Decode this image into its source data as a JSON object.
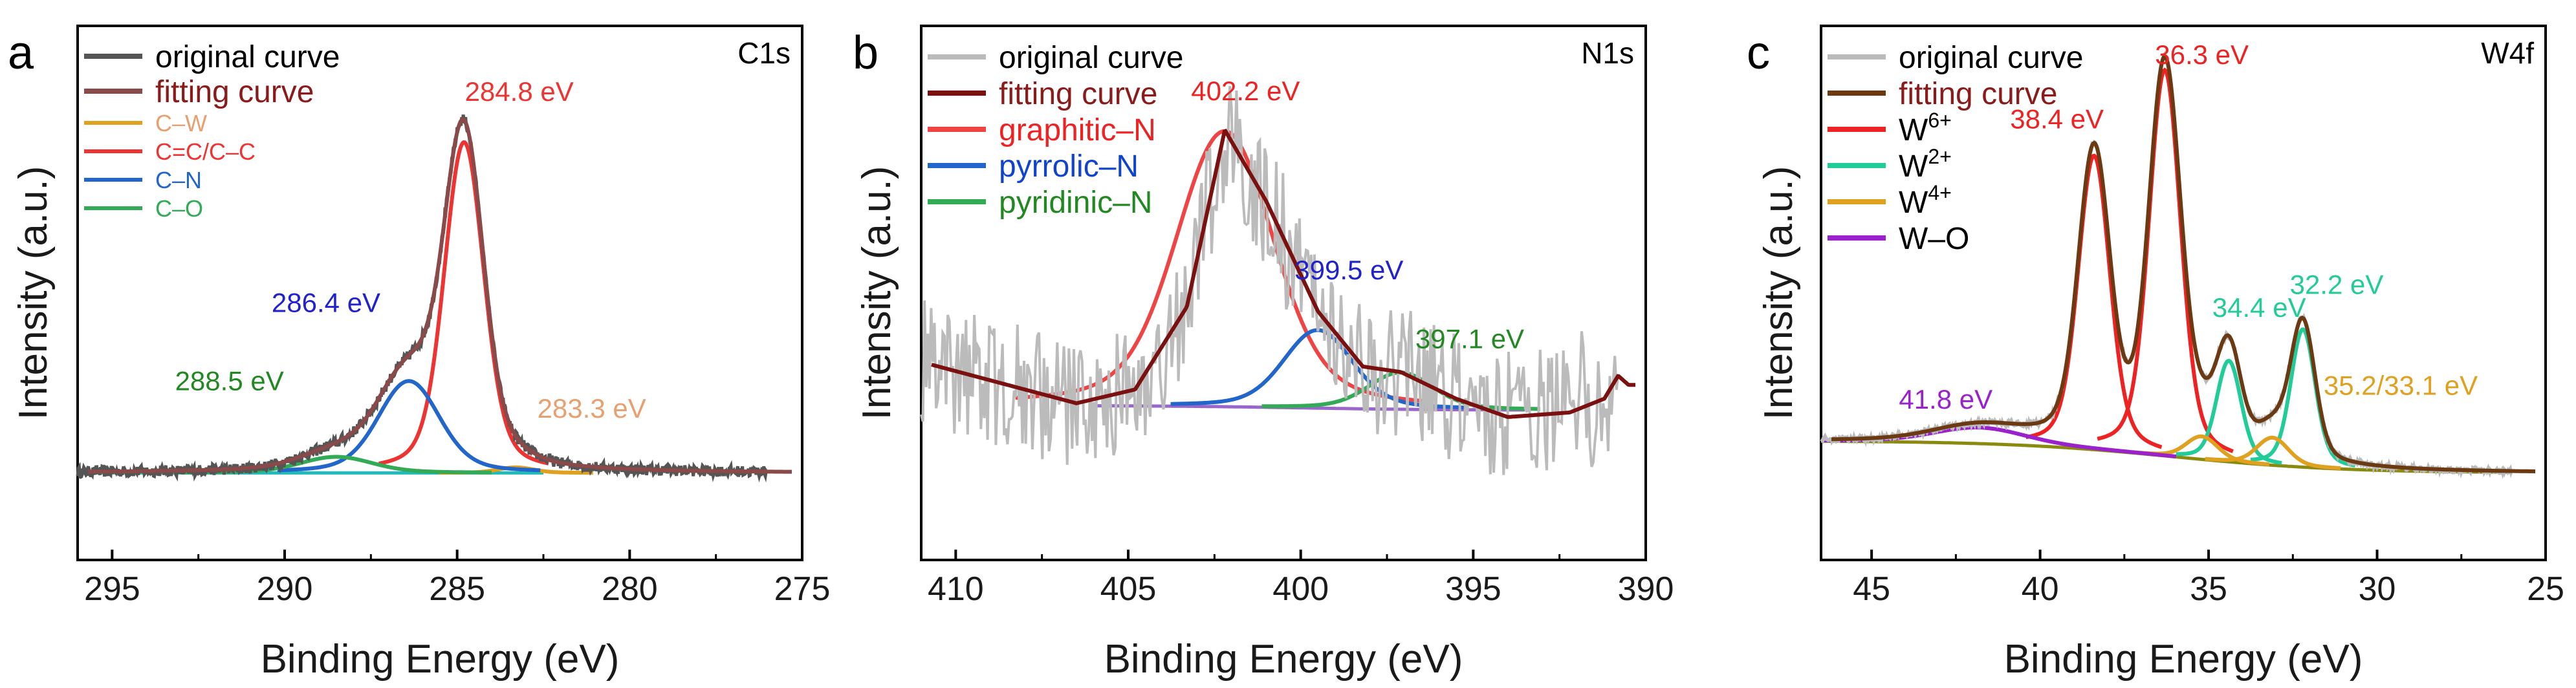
{
  "figure_labels": [
    "a",
    "b",
    "c"
  ],
  "chart_data": [
    {
      "type": "line",
      "panel_letter": "a",
      "core_label": "C1s",
      "xlabel": "Binding Energy (eV)",
      "ylabel": "Intensity (a.u.)",
      "xlim": [
        296,
        275
      ],
      "ylim": [
        0,
        1.0
      ],
      "x_ticks": [
        295,
        290,
        285,
        280,
        275
      ],
      "x_tick_labels": [
        "295",
        "290",
        "285",
        "280",
        "275"
      ],
      "baseline_decay": 6.0,
      "series": [
        {
          "name": "original curve",
          "role": "data",
          "color": "#555555",
          "noise": 0.012
        },
        {
          "name": "fitting curve",
          "role": "fit",
          "color": "#8a4a4a"
        },
        {
          "name": "C–W",
          "role": "peak",
          "color": "#e0a020",
          "center": 283.3,
          "height": 0.012,
          "width": 0.5
        },
        {
          "name": "C=C/C–C",
          "role": "peak",
          "color": "#ee3333",
          "center": 284.8,
          "height": 0.72,
          "width": 0.55
        },
        {
          "name": "C–N",
          "role": "peak",
          "color": "#2266cc",
          "center": 286.4,
          "height": 0.2,
          "width": 0.85
        },
        {
          "name": "C–O",
          "role": "peak",
          "color": "#33aa55",
          "center": 288.5,
          "height": 0.035,
          "width": 1.0
        }
      ],
      "background": {
        "color": "#22bbbb",
        "xmin": 282.5,
        "xmax": 296,
        "base": 0.05,
        "step": 0.0,
        "step_center": 285,
        "step_width": 1.0
      },
      "legend": [
        {
          "label": "original curve",
          "color": "#555555",
          "text_color": "#000000",
          "size": "large"
        },
        {
          "label": "fitting curve",
          "color": "#8a4a4a",
          "text_color": "#8b1a1a",
          "size": "large"
        },
        {
          "label": "C–W",
          "color": "#e0a020",
          "text_color": "#e8a070",
          "size": "small"
        },
        {
          "label": "C=C/C–C",
          "color": "#ee3333",
          "text_color": "#ee3333",
          "size": "small"
        },
        {
          "label": "C–N",
          "color": "#2266cc",
          "text_color": "#2266cc",
          "size": "small"
        },
        {
          "label": "C–O",
          "color": "#33aa55",
          "text_color": "#33aa55",
          "size": "small"
        }
      ],
      "annotations": [
        {
          "text": "284.8 eV",
          "color": "#ee3333",
          "x": 283.2,
          "y": 0.86
        },
        {
          "text": "286.4 eV",
          "color": "#2222cc",
          "x": 288.8,
          "y": 0.4
        },
        {
          "text": "288.5 eV",
          "color": "#228822",
          "x": 291.6,
          "y": 0.23
        },
        {
          "text": "283.3 eV",
          "color": "#e8a070",
          "x": 281.1,
          "y": 0.17
        }
      ]
    },
    {
      "type": "line",
      "panel_letter": "b",
      "core_label": "N1s",
      "xlabel": "Binding Energy (eV)",
      "ylabel": "Intensity (a.u.)",
      "xlim": [
        411,
        390
      ],
      "ylim": [
        0,
        1.0
      ],
      "x_ticks": [
        410,
        405,
        400,
        395,
        390
      ],
      "x_tick_labels": [
        "410",
        "405",
        "400",
        "395",
        "390"
      ],
      "series": [
        {
          "name": "original curve",
          "role": "data",
          "color": "#bbbbbb",
          "noise": 0.09
        },
        {
          "name": "fitting curve",
          "role": "fit",
          "color": "#7a1010"
        },
        {
          "name": "graphitic–N",
          "role": "peak",
          "color": "#ee4444",
          "center": 402.2,
          "height": 0.6,
          "width": 1.35
        },
        {
          "name": "pyrrolic–N",
          "role": "peak",
          "color": "#2266cc",
          "center": 399.5,
          "height": 0.17,
          "width": 0.95
        },
        {
          "name": "pyridinic–N",
          "role": "peak",
          "color": "#33aa55",
          "center": 397.1,
          "height": 0.08,
          "width": 0.9
        }
      ],
      "background": {
        "color": "#9966cc",
        "xmin": 393.5,
        "xmax": 406,
        "base": 0.175,
        "step": 0.01,
        "step_center": 400,
        "step_width": 2.0
      },
      "fit_tail": [
        [
          411,
          0.28
        ],
        [
          409,
          0.24
        ],
        [
          406.5,
          0.19
        ],
        [
          404.8,
          0.22
        ],
        [
          403.3,
          0.4
        ],
        [
          402.2,
          0.785
        ],
        [
          401,
          0.63
        ],
        [
          399.5,
          0.39
        ],
        [
          398.2,
          0.27
        ],
        [
          397.1,
          0.258
        ],
        [
          395.5,
          0.2
        ],
        [
          394,
          0.16
        ],
        [
          392.2,
          0.17
        ],
        [
          391.2,
          0.2
        ],
        [
          390.8,
          0.25
        ],
        [
          390.5,
          0.23
        ]
      ],
      "legend": [
        {
          "label": "original curve",
          "color": "#bbbbbb",
          "text_color": "#000000",
          "size": "large"
        },
        {
          "label": "fitting curve",
          "color": "#7a1010",
          "text_color": "#8b1a1a",
          "size": "large"
        },
        {
          "label": "graphitic–N",
          "color": "#ee4444",
          "text_color": "#ee2222",
          "size": "large"
        },
        {
          "label": "pyrrolic–N",
          "color": "#2266cc",
          "text_color": "#1144cc",
          "size": "large"
        },
        {
          "label": "pyridinic–N",
          "color": "#33aa55",
          "text_color": "#228822",
          "size": "large"
        }
      ],
      "annotations": [
        {
          "text": "402.2 eV",
          "color": "#ee2222",
          "x": 401.6,
          "y": 0.85
        },
        {
          "text": "399.5 eV",
          "color": "#2222cc",
          "x": 398.6,
          "y": 0.46
        },
        {
          "text": "397.1 eV",
          "color": "#228822",
          "x": 395.1,
          "y": 0.31
        }
      ]
    },
    {
      "type": "line",
      "panel_letter": "c",
      "core_label": "W4f",
      "xlabel": "Binding Energy (eV)",
      "ylabel": "Intensity (a.u.)",
      "xlim": [
        46.5,
        25
      ],
      "ylim": [
        0,
        1.0
      ],
      "x_ticks": [
        45,
        40,
        35,
        30,
        25
      ],
      "x_tick_labels": [
        "45",
        "40",
        "35",
        "30",
        "25"
      ],
      "baseline_decay": 9.0,
      "series": [
        {
          "name": "original curve",
          "role": "data",
          "color": "#bbbbbb",
          "noise": 0.006
        },
        {
          "name": "fitting curve",
          "role": "fit",
          "color": "#6b3a12"
        },
        {
          "name": "W⁶⁺ 38.4",
          "role": "peak",
          "color": "#ee2222",
          "center": 38.4,
          "height": 0.64,
          "width": 0.45
        },
        {
          "name": "W⁶⁺ 36.3",
          "role": "peak",
          "color": "#ee2222",
          "center": 36.3,
          "height": 0.84,
          "width": 0.45
        },
        {
          "name": "W²⁺ 34.4",
          "role": "peak",
          "color": "#22cc99",
          "center": 34.4,
          "height": 0.22,
          "width": 0.35
        },
        {
          "name": "W²⁺ 32.2",
          "role": "peak",
          "color": "#22cc99",
          "center": 32.2,
          "height": 0.3,
          "width": 0.35
        },
        {
          "name": "W⁴⁺ 35.2",
          "role": "peak",
          "color": "#e0a020",
          "center": 35.2,
          "height": 0.05,
          "width": 0.45
        },
        {
          "name": "W⁴⁺ 33.1",
          "role": "peak",
          "color": "#e0a020",
          "center": 33.1,
          "height": 0.06,
          "width": 0.45
        },
        {
          "name": "W–O",
          "role": "peak",
          "color": "#9922cc",
          "center": 41.8,
          "height": 0.035,
          "width": 1.3
        }
      ],
      "background": {
        "color": "#8a8a10",
        "xmin": 26,
        "xmax": 46.5,
        "base": 0.05,
        "step": 0.07,
        "step_center": 36,
        "step_width": 2.5
      },
      "legend": [
        {
          "label": "original curve",
          "color": "#bbbbbb",
          "text_color": "#000000",
          "size": "large"
        },
        {
          "label": "fitting curve",
          "color": "#6b3a12",
          "text_color": "#8b1a1a",
          "size": "large"
        },
        {
          "label": "W",
          "sup": "6+",
          "color": "#ee2222",
          "text_color": "#000000",
          "size": "large"
        },
        {
          "label": "W",
          "sup": "2+",
          "color": "#22cc99",
          "text_color": "#000000",
          "size": "large"
        },
        {
          "label": "W",
          "sup": "4+",
          "color": "#e0a020",
          "text_color": "#000000",
          "size": "large"
        },
        {
          "label": "W–O",
          "color": "#9922cc",
          "text_color": "#000000",
          "size": "large"
        }
      ],
      "annotations": [
        {
          "text": "36.3 eV",
          "color": "#ee2222",
          "x": 35.2,
          "y": 0.94
        },
        {
          "text": "38.4 eV",
          "color": "#ee2222",
          "x": 39.5,
          "y": 0.8
        },
        {
          "text": "34.4 eV",
          "color": "#22cc99",
          "x": 33.5,
          "y": 0.39
        },
        {
          "text": "32.2 eV",
          "color": "#22cc99",
          "x": 31.2,
          "y": 0.44
        },
        {
          "text": "35.2/33.1 eV",
          "color": "#e0a020",
          "x": 29.3,
          "y": 0.22
        },
        {
          "text": "41.8 eV",
          "color": "#9922cc",
          "x": 42.8,
          "y": 0.19
        }
      ]
    }
  ]
}
